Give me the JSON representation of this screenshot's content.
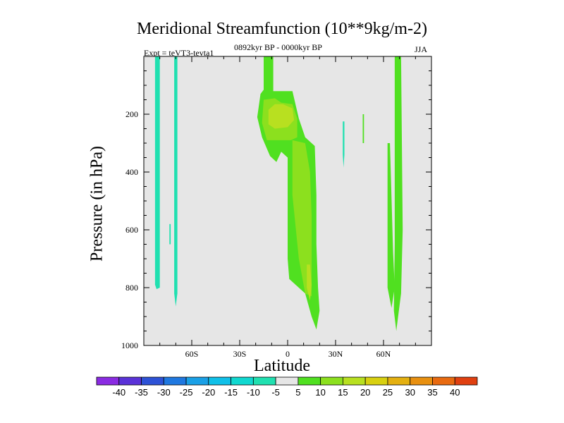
{
  "chart_data": {
    "type": "heatmap",
    "title": "Meridional Streamfunction (10**9kg/m-2)",
    "left_string": "Expt = teVT3-tevta1",
    "center_string": "0892kyr BP - 0000kyr BP",
    "right_string": "JJA",
    "xlabel": "Latitude",
    "ylabel": "Pressure (in hPa)",
    "xlim": [
      -90,
      90
    ],
    "ylim": [
      1000,
      0
    ],
    "x_ticks": [
      {
        "value": -60,
        "label": "60S"
      },
      {
        "value": -30,
        "label": "30S"
      },
      {
        "value": 0,
        "label": "0"
      },
      {
        "value": 30,
        "label": "30N"
      },
      {
        "value": 60,
        "label": "60N"
      }
    ],
    "y_ticks": [
      {
        "value": 200,
        "label": "200"
      },
      {
        "value": 400,
        "label": "400"
      },
      {
        "value": 600,
        "label": "600"
      },
      {
        "value": 800,
        "label": "800"
      },
      {
        "value": 1000,
        "label": "1000"
      }
    ],
    "background_color": "#e6e6e6",
    "colorbar": {
      "levels": [
        "-40",
        "-35",
        "-30",
        "-25",
        "-20",
        "-15",
        "-10",
        "-5",
        "5",
        "10",
        "15",
        "20",
        "25",
        "30",
        "35",
        "40"
      ],
      "colors": [
        "#8a2be2",
        "#5a32d8",
        "#2d52d6",
        "#1f78e0",
        "#1aa0e6",
        "#10c0e8",
        "#10d8d0",
        "#20e0b0",
        "#e6e6e6",
        "#50e020",
        "#8ce01e",
        "#b8e020",
        "#d8d010",
        "#e4b010",
        "#e89010",
        "#e86a10",
        "#e04010"
      ]
    },
    "regions": [
      {
        "name": "band-78S",
        "level": "-5..-10",
        "color": "#20e0b0",
        "points": [
          [
            -83,
            0
          ],
          [
            -80,
            0
          ],
          [
            -80,
            800
          ],
          [
            -82,
            805
          ],
          [
            -83,
            790
          ]
        ]
      },
      {
        "name": "band-70S",
        "level": "-5..-10",
        "color": "#20e0b0",
        "points": [
          [
            -71,
            0
          ],
          [
            -69,
            0
          ],
          [
            -69,
            820
          ],
          [
            -70,
            865
          ],
          [
            -71,
            820
          ]
        ]
      },
      {
        "name": "sliver-73S",
        "level": "-5..-10",
        "color": "#20e0b0",
        "points": [
          [
            -74,
            580
          ],
          [
            -73.2,
            580
          ],
          [
            -73.2,
            650
          ],
          [
            -74,
            650
          ]
        ]
      },
      {
        "name": "trop-outer",
        "level": "5..10",
        "color": "#50e020",
        "points": [
          [
            -15,
            0
          ],
          [
            -9,
            0
          ],
          [
            -9,
            120
          ],
          [
            3,
            120
          ],
          [
            7,
            215
          ],
          [
            11,
            280
          ],
          [
            15,
            300
          ],
          [
            17,
            310
          ],
          [
            18,
            480
          ],
          [
            18,
            650
          ],
          [
            19,
            800
          ],
          [
            20,
            880
          ],
          [
            18,
            945
          ],
          [
            15,
            900
          ],
          [
            11,
            820
          ],
          [
            1,
            770
          ],
          [
            0,
            700
          ],
          [
            0,
            350
          ],
          [
            -4,
            330
          ],
          [
            -7,
            365
          ],
          [
            -11,
            345
          ],
          [
            -16,
            280
          ],
          [
            -19,
            210
          ],
          [
            -17,
            130
          ],
          [
            -15,
            115
          ]
        ]
      },
      {
        "name": "trop-upper-inner",
        "level": "10..15",
        "color": "#8ce01e",
        "points": [
          [
            -15,
            150
          ],
          [
            -8,
            145
          ],
          [
            -4,
            160
          ],
          [
            3,
            165
          ],
          [
            6,
            215
          ],
          [
            6,
            280
          ],
          [
            2,
            290
          ],
          [
            -7,
            290
          ],
          [
            -13,
            290
          ],
          [
            -16,
            230
          ]
        ]
      },
      {
        "name": "trop-upper-core",
        "level": "15..20",
        "color": "#b8e020",
        "points": [
          [
            -12,
            185
          ],
          [
            -8,
            165
          ],
          [
            -3,
            165
          ],
          [
            3,
            180
          ],
          [
            4,
            220
          ],
          [
            0,
            245
          ],
          [
            -8,
            250
          ],
          [
            -12,
            235
          ]
        ]
      },
      {
        "name": "trop-lower-inner",
        "level": "10..15",
        "color": "#8ce01e",
        "points": [
          [
            3,
            290
          ],
          [
            11,
            300
          ],
          [
            14,
            400
          ],
          [
            15,
            550
          ],
          [
            15,
            700
          ],
          [
            15,
            830
          ],
          [
            11,
            820
          ],
          [
            7,
            700
          ],
          [
            3,
            480
          ]
        ]
      },
      {
        "name": "trop-lower-core",
        "level": "15..20",
        "color": "#b8e020",
        "points": [
          [
            12,
            720
          ],
          [
            14,
            720
          ],
          [
            15,
            790
          ],
          [
            14,
            845
          ],
          [
            12,
            800
          ]
        ]
      },
      {
        "name": "sliver-35N",
        "level": "-5..-10",
        "color": "#20e0b0",
        "points": [
          [
            34.5,
            225
          ],
          [
            35.5,
            225
          ],
          [
            35.5,
            340
          ],
          [
            35,
            385
          ],
          [
            34.5,
            340
          ]
        ]
      },
      {
        "name": "sliver-47N",
        "level": "5..10",
        "color": "#50e020",
        "points": [
          [
            47,
            200
          ],
          [
            47.8,
            200
          ],
          [
            47.8,
            300
          ],
          [
            47,
            300
          ]
        ]
      },
      {
        "name": "band-64N-left",
        "level": "5..10",
        "color": "#50e020",
        "points": [
          [
            62.5,
            300
          ],
          [
            64,
            300
          ],
          [
            66,
            680
          ],
          [
            67,
            800
          ],
          [
            65,
            870
          ],
          [
            62.5,
            800
          ]
        ]
      },
      {
        "name": "band-70N",
        "level": "5..10",
        "color": "#50e020",
        "points": [
          [
            67,
            0
          ],
          [
            71,
            0
          ],
          [
            72,
            600
          ],
          [
            71,
            820
          ],
          [
            68,
            950
          ],
          [
            66.5,
            880
          ],
          [
            67,
            650
          ]
        ]
      }
    ]
  }
}
